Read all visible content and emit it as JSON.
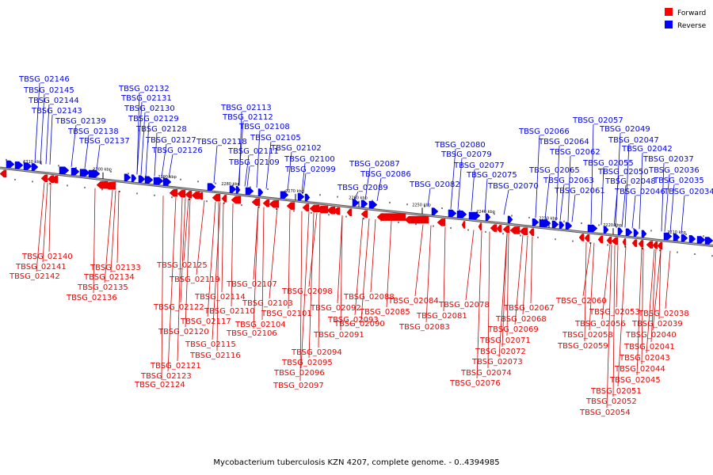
{
  "caption": "Mycobacterium tuberculosis KZN 4207, complete genome. - 0..4394985",
  "legend": [
    {
      "label": "Forward",
      "color": "#ff0000"
    },
    {
      "label": "Reverse",
      "color": "#0000ff"
    }
  ],
  "colors": {
    "forward": "#ee0000",
    "reverse": "#0000ee",
    "backbone": "#888888"
  },
  "kbp_ticks": [
    "2310 kbp",
    "2300 kbp",
    "2290 kbp",
    "2280 kbp",
    "2270 kbp",
    "2260 kbp",
    "2250 kbp",
    "2240 kbp",
    "2230 kbp",
    "2220 kbp",
    "2210 kbp"
  ],
  "reverse_genes": [
    "TBSG_02146",
    "TBSG_02145",
    "TBSG_02144",
    "TBSG_02143",
    "TBSG_02139",
    "TBSG_02138",
    "TBSG_02137",
    "TBSG_02132",
    "TBSG_02131",
    "TBSG_02130",
    "TBSG_02129",
    "TBSG_02128",
    "TBSG_02127",
    "TBSG_02126",
    "TBSG_02118",
    "TBSG_02113",
    "TBSG_02112",
    "TBSG_02111",
    "TBSG_02108",
    "TBSG_02109",
    "TBSG_02105",
    "TBSG_02102",
    "TBSG_02100",
    "TBSG_02099",
    "TBSG_02087",
    "TBSG_02086",
    "TBSG_02089",
    "TBSG_02082",
    "TBSG_02080",
    "TBSG_02079",
    "TBSG_02077",
    "TBSG_02075",
    "TBSG_02070",
    "TBSG_02066",
    "TBSG_02064",
    "TBSG_02062",
    "TBSG_02065",
    "TBSG_02063",
    "TBSG_02061",
    "TBSG_02057",
    "TBSG_02049",
    "TBSG_02047",
    "TBSG_02042",
    "TBSG_02055",
    "TBSG_02050",
    "TBSG_02048",
    "TBSG_02046",
    "TBSG_02037",
    "TBSG_02036",
    "TBSG_02035",
    "TBSG_02034"
  ],
  "forward_genes": [
    "TBSG_02140",
    "TBSG_02141",
    "TBSG_02142",
    "TBSG_02133",
    "TBSG_02134",
    "TBSG_02135",
    "TBSG_02136",
    "TBSG_02125",
    "TBSG_02119",
    "TBSG_02114",
    "TBSG_02122",
    "TBSG_02117",
    "TBSG_02110",
    "TBSG_02120",
    "TBSG_02115",
    "TBSG_02116",
    "TBSG_02121",
    "TBSG_02123",
    "TBSG_02124",
    "TBSG_02107",
    "TBSG_02103",
    "TBSG_02104",
    "TBSG_02106",
    "TBSG_02098",
    "TBSG_02101",
    "TBSG_02092",
    "TBSG_02093",
    "TBSG_02094",
    "TBSG_02095",
    "TBSG_02096",
    "TBSG_02097",
    "TBSG_02088",
    "TBSG_02090",
    "TBSG_02091",
    "TBSG_02085",
    "TBSG_02084",
    "TBSG_02081",
    "TBSG_02083",
    "TBSG_02078",
    "TBSG_02067",
    "TBSG_02068",
    "TBSG_02069",
    "TBSG_02071",
    "TBSG_02072",
    "TBSG_02073",
    "TBSG_02074",
    "TBSG_02076",
    "TBSG_02060",
    "TBSG_02053",
    "TBSG_02038",
    "TBSG_02056",
    "TBSG_02039",
    "TBSG_02058",
    "TBSG_02040",
    "TBSG_02059",
    "TBSG_02041",
    "TBSG_02043",
    "TBSG_02044",
    "TBSG_02045",
    "TBSG_02051",
    "TBSG_02052",
    "TBSG_02054"
  ]
}
